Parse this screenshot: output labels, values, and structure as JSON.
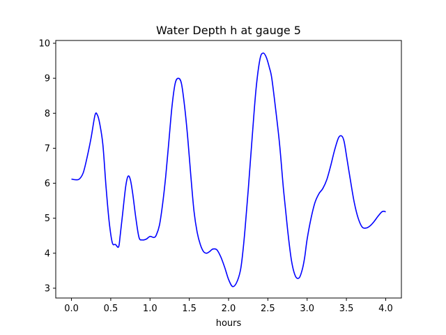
{
  "chart_data": {
    "type": "line",
    "title": "Water Depth h at gauge 5",
    "xlabel": "hours",
    "ylabel": "",
    "xlim": [
      -0.2,
      4.2
    ],
    "ylim": [
      2.72,
      10.08
    ],
    "xticks": [
      "0.0",
      "0.5",
      "1.0",
      "1.5",
      "2.0",
      "2.5",
      "3.0",
      "3.5",
      "4.0"
    ],
    "yticks": [
      "3",
      "4",
      "5",
      "6",
      "7",
      "8",
      "9",
      "10"
    ],
    "grid": false,
    "legend": "none",
    "series": [
      {
        "color": "#0000ff",
        "x": [
          0.0,
          0.05,
          0.1,
          0.15,
          0.2,
          0.25,
          0.3,
          0.33,
          0.36,
          0.4,
          0.44,
          0.48,
          0.52,
          0.56,
          0.6,
          0.62,
          0.65,
          0.69,
          0.72,
          0.75,
          0.78,
          0.82,
          0.86,
          0.9,
          0.95,
          1.0,
          1.05,
          1.08,
          1.12,
          1.16,
          1.2,
          1.24,
          1.28,
          1.32,
          1.36,
          1.4,
          1.44,
          1.48,
          1.52,
          1.56,
          1.6,
          1.64,
          1.68,
          1.72,
          1.76,
          1.8,
          1.85,
          1.9,
          1.95,
          2.0,
          2.05,
          2.1,
          2.15,
          2.18,
          2.21,
          2.25,
          2.3,
          2.35,
          2.4,
          2.44,
          2.48,
          2.52,
          2.55,
          2.6,
          2.65,
          2.7,
          2.75,
          2.8,
          2.85,
          2.9,
          2.94,
          2.97,
          3.0,
          3.05,
          3.1,
          3.15,
          3.2,
          3.25,
          3.3,
          3.35,
          3.4,
          3.44,
          3.47,
          3.5,
          3.55,
          3.6,
          3.65,
          3.7,
          3.75,
          3.8,
          3.85,
          3.9,
          3.95,
          3.98,
          4.0
        ],
        "y": [
          6.12,
          6.1,
          6.12,
          6.3,
          6.75,
          7.3,
          7.95,
          7.95,
          7.7,
          7.1,
          5.9,
          4.9,
          4.3,
          4.25,
          4.18,
          4.5,
          5.1,
          5.9,
          6.2,
          6.1,
          5.7,
          5.0,
          4.45,
          4.38,
          4.4,
          4.48,
          4.45,
          4.52,
          4.8,
          5.4,
          6.2,
          7.2,
          8.2,
          8.85,
          9.0,
          8.85,
          8.2,
          7.3,
          6.2,
          5.2,
          4.6,
          4.25,
          4.05,
          4.0,
          4.05,
          4.12,
          4.1,
          3.9,
          3.6,
          3.25,
          3.05,
          3.15,
          3.5,
          4.0,
          4.7,
          5.8,
          7.3,
          8.7,
          9.55,
          9.72,
          9.6,
          9.3,
          9.0,
          8.1,
          7.1,
          5.8,
          4.7,
          3.8,
          3.35,
          3.3,
          3.55,
          3.9,
          4.4,
          5.0,
          5.45,
          5.7,
          5.85,
          6.1,
          6.5,
          6.95,
          7.3,
          7.35,
          7.2,
          6.8,
          6.1,
          5.45,
          5.0,
          4.75,
          4.72,
          4.78,
          4.9,
          5.05,
          5.18,
          5.2,
          5.18
        ]
      }
    ]
  }
}
